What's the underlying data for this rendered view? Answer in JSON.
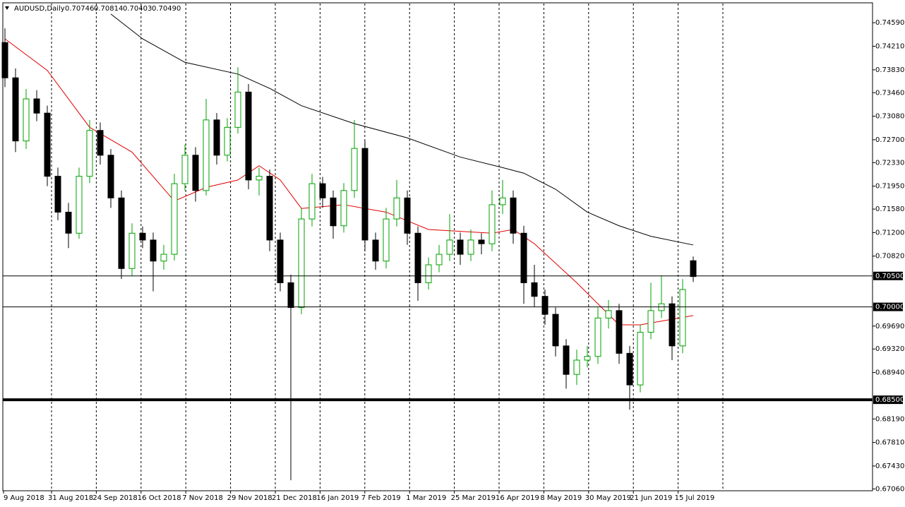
{
  "chart_data": {
    "type": "candlestick",
    "title": "AUDUSD,Daily",
    "header_quote": [
      "0.70746",
      "0.70814",
      "0.70403",
      "0.70490"
    ],
    "open": [
      0.7427,
      0.737,
      0.7268,
      0.7336,
      0.7313,
      0.7211,
      0.7153,
      0.7119,
      0.7211,
      0.7285,
      0.7245,
      0.7176,
      0.7062,
      0.7119,
      0.7108,
      0.7074,
      0.7085,
      0.7199,
      0.7245,
      0.7188,
      0.7302,
      0.7245,
      0.729,
      0.7347,
      0.7205,
      0.7211,
      0.7108,
      0.7039,
      0.6999,
      0.7142,
      0.7199,
      0.7176,
      0.7131,
      0.7188,
      0.7256,
      0.7108,
      0.7074,
      0.7142,
      0.7176,
      0.7119,
      0.7039,
      0.7068,
      0.7085,
      0.7108,
      0.7085,
      0.7108,
      0.7102,
      0.7165,
      0.7176,
      0.7119,
      0.7039,
      0.7017,
      0.6988,
      0.6937,
      0.6891,
      0.6914,
      0.692,
      0.6982,
      0.6994,
      0.6925,
      0.6874,
      0.6959,
      0.6994,
      0.7005,
      0.6937,
      0.70746
    ],
    "high": [
      0.745,
      0.7385,
      0.7352,
      0.735,
      0.7325,
      0.7225,
      0.7168,
      0.7225,
      0.7302,
      0.7298,
      0.7255,
      0.7188,
      0.7135,
      0.713,
      0.712,
      0.71,
      0.7215,
      0.7262,
      0.7258,
      0.7336,
      0.7313,
      0.7305,
      0.7387,
      0.736,
      0.7225,
      0.7222,
      0.712,
      0.7052,
      0.716,
      0.7215,
      0.721,
      0.7188,
      0.72,
      0.7302,
      0.7268,
      0.712,
      0.716,
      0.7205,
      0.7188,
      0.713,
      0.708,
      0.71,
      0.715,
      0.712,
      0.7125,
      0.7119,
      0.7188,
      0.7205,
      0.7188,
      0.7131,
      0.7068,
      0.7028,
      0.6999,
      0.6948,
      0.6931,
      0.6937,
      0.6999,
      0.7011,
      0.7005,
      0.6937,
      0.6971,
      0.7039,
      0.7051,
      0.7017,
      0.7045,
      0.70814
    ],
    "low": [
      0.7355,
      0.725,
      0.7255,
      0.73,
      0.7195,
      0.714,
      0.7095,
      0.711,
      0.72,
      0.723,
      0.716,
      0.7045,
      0.705,
      0.7095,
      0.7025,
      0.706,
      0.7075,
      0.7188,
      0.717,
      0.718,
      0.723,
      0.7235,
      0.728,
      0.719,
      0.718,
      0.709,
      0.7025,
      0.672,
      0.6988,
      0.713,
      0.716,
      0.711,
      0.712,
      0.7176,
      0.709,
      0.706,
      0.7062,
      0.713,
      0.71,
      0.701,
      0.7028,
      0.7056,
      0.7074,
      0.7068,
      0.7074,
      0.7085,
      0.709,
      0.715,
      0.7102,
      0.7005,
      0.7,
      0.6971,
      0.692,
      0.6868,
      0.6874,
      0.6902,
      0.6908,
      0.6965,
      0.6908,
      0.6834,
      0.6862,
      0.6948,
      0.6982,
      0.6914,
      0.6925,
      0.70403
    ],
    "close": [
      0.737,
      0.7268,
      0.7336,
      0.7313,
      0.7211,
      0.7153,
      0.7119,
      0.7211,
      0.7285,
      0.7245,
      0.7176,
      0.7062,
      0.7119,
      0.7108,
      0.7074,
      0.7085,
      0.7199,
      0.7245,
      0.7188,
      0.7302,
      0.7245,
      0.729,
      0.7347,
      0.7205,
      0.7211,
      0.7108,
      0.7039,
      0.6999,
      0.7142,
      0.7199,
      0.7176,
      0.7131,
      0.7188,
      0.7256,
      0.7108,
      0.7074,
      0.7142,
      0.7176,
      0.7119,
      0.7039,
      0.7068,
      0.7085,
      0.7108,
      0.7085,
      0.7108,
      0.7102,
      0.7165,
      0.7176,
      0.7119,
      0.7039,
      0.7017,
      0.6988,
      0.6937,
      0.6891,
      0.6914,
      0.692,
      0.6982,
      0.6994,
      0.6925,
      0.6874,
      0.6959,
      0.6994,
      0.7005,
      0.6937,
      0.7028,
      0.7049
    ],
    "up_color": "#00a000",
    "down_color": "#000000",
    "ylim": [
      0.6703,
      0.749
    ],
    "yticks": [
      {
        "value": 0.7459,
        "label": "0.74590"
      },
      {
        "value": 0.7421,
        "label": "0.74210"
      },
      {
        "value": 0.7383,
        "label": "0.73830"
      },
      {
        "value": 0.7346,
        "label": "0.73460"
      },
      {
        "value": 0.7308,
        "label": "0.73080"
      },
      {
        "value": 0.727,
        "label": "0.72700"
      },
      {
        "value": 0.7233,
        "label": "0.72330"
      },
      {
        "value": 0.7195,
        "label": "0.71950"
      },
      {
        "value": 0.7158,
        "label": "0.71580"
      },
      {
        "value": 0.712,
        "label": "0.71200"
      },
      {
        "value": 0.7082,
        "label": "0.70820"
      },
      {
        "value": 0.6969,
        "label": "0.69690"
      },
      {
        "value": 0.6932,
        "label": "0.69320"
      },
      {
        "value": 0.6894,
        "label": "0.68940"
      },
      {
        "value": 0.6819,
        "label": "0.68190"
      },
      {
        "value": 0.6781,
        "label": "0.67810"
      },
      {
        "value": 0.6743,
        "label": "0.67430"
      },
      {
        "value": 0.6706,
        "label": "0.67060"
      }
    ],
    "levels": [
      {
        "value": 0.705,
        "label": "0.70500",
        "width": 1
      },
      {
        "value": 0.7,
        "label": "0.70000",
        "width": 1
      },
      {
        "value": 0.685,
        "label": "0.68500",
        "width": 4
      }
    ],
    "xlabels": [
      "9 Aug 2018",
      "31 Aug 2018",
      "24 Sep 2018",
      "16 Oct 2018",
      "7 Nov 2018",
      "29 Nov 2018",
      "21 Dec 2018",
      "16 Jan 2019",
      "7 Feb 2019",
      "1 Mar 2019",
      "25 Mar 2019",
      "16 Apr 2019",
      "8 May 2019",
      "30 May 2019",
      "21 Jun 2019",
      "15 Jul 2019"
    ],
    "moving_averages": [
      {
        "color": "#e00000",
        "x": [
          0,
          4,
          8,
          12,
          16,
          19,
          22,
          24,
          26,
          28,
          32,
          36,
          40,
          46,
          48,
          50,
          54,
          56,
          58,
          60,
          62,
          65
        ],
        "values": [
          0.7433,
          0.7382,
          0.729,
          0.725,
          0.7171,
          0.7193,
          0.7205,
          0.7228,
          0.7205,
          0.7159,
          0.7165,
          0.7153,
          0.7125,
          0.7119,
          0.7125,
          0.7102,
          0.7039,
          0.7005,
          0.6971,
          0.6971,
          0.6977,
          0.6986
        ]
      },
      {
        "color": "#000000",
        "x": [
          10,
          13,
          17,
          22,
          25,
          28,
          33,
          38,
          43,
          47,
          49,
          52,
          55,
          58,
          61,
          65
        ],
        "values": [
          0.7473,
          0.7433,
          0.7395,
          0.7376,
          0.7353,
          0.7325,
          0.7296,
          0.7273,
          0.7242,
          0.7225,
          0.7216,
          0.719,
          0.7153,
          0.7131,
          0.7114,
          0.71
        ]
      }
    ]
  }
}
